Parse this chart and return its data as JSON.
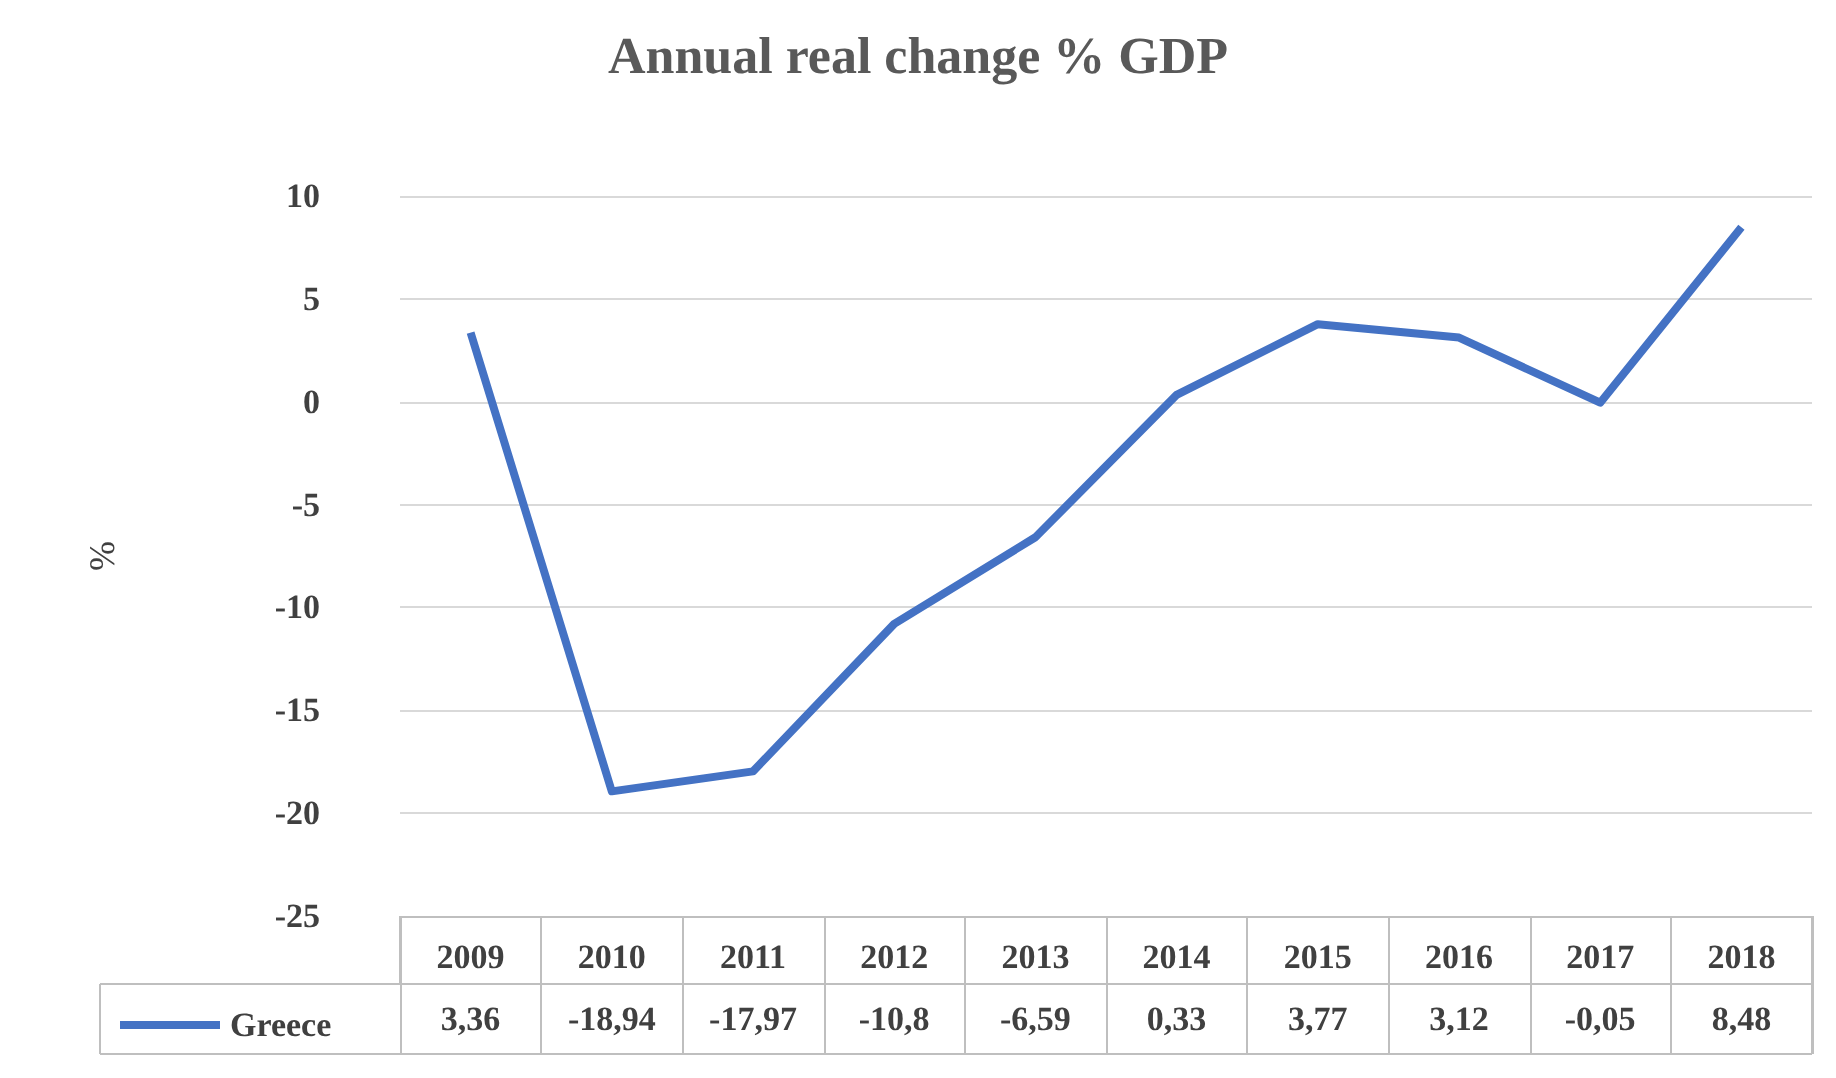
{
  "chart_data": {
    "type": "line",
    "title": "Annual real change % GDP",
    "ylabel": "%",
    "categories": [
      "2009",
      "2010",
      "2011",
      "2012",
      "2013",
      "2014",
      "2015",
      "2016",
      "2017",
      "2018"
    ],
    "series": [
      {
        "name": "Greece",
        "color": "#4472c4",
        "values": [
          3.36,
          -18.94,
          -17.97,
          -10.8,
          -6.59,
          0.33,
          3.77,
          3.12,
          -0.05,
          8.48
        ],
        "value_labels": [
          "3,36",
          "-18,94",
          "-17,97",
          "-10,8",
          "-6,59",
          "0,33",
          "3,77",
          "3,12",
          "-0,05",
          "8,48"
        ]
      }
    ],
    "ylim": [
      -25,
      10
    ],
    "yticks": [
      -25,
      -20,
      -15,
      -10,
      -5,
      0,
      5,
      10
    ],
    "grid": "y",
    "legend": "bottom left",
    "marker": "none",
    "line_style": "solid"
  }
}
